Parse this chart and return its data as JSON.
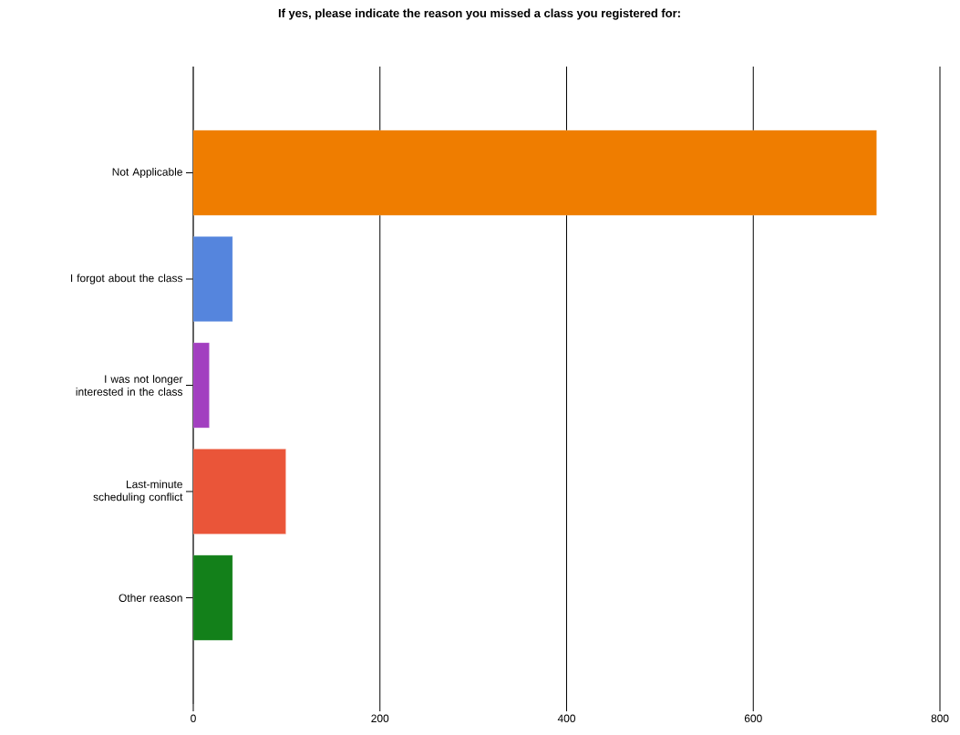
{
  "chart_data": {
    "type": "bar",
    "orientation": "horizontal",
    "title": "If yes, please indicate the reason you missed a class you registered for:",
    "categories": [
      "Not Applicable",
      "I forgot about the class",
      "I was not longer interested in the class",
      "Last-minute scheduling conflict",
      "Other reason"
    ],
    "values": [
      732,
      42,
      17,
      99,
      42
    ],
    "colors": [
      "#ef7d00",
      "#5585dd",
      "#a23fc0",
      "#ea5539",
      "#13801a"
    ],
    "xlim": [
      0,
      800
    ],
    "xticks": [
      0,
      200,
      400,
      600,
      800
    ],
    "grid": "x"
  }
}
